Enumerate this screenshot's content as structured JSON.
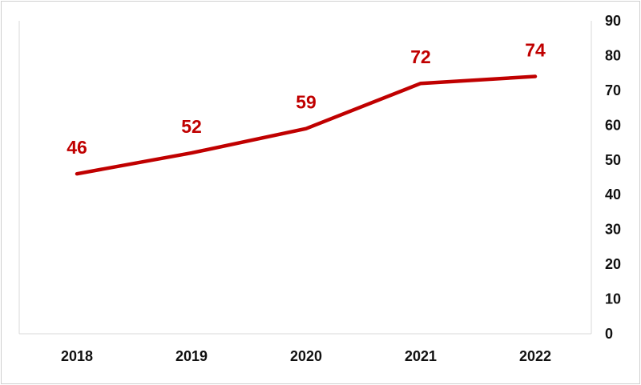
{
  "colors": {
    "series": "#c00000",
    "axis": "#d9d9d9",
    "text": "#111111"
  },
  "chart_data": {
    "type": "line",
    "x": [
      "2018",
      "2019",
      "2020",
      "2021",
      "2022"
    ],
    "series": [
      {
        "values": [
          46,
          52,
          59,
          72,
          74
        ]
      }
    ],
    "data_labels": [
      "46",
      "52",
      "59",
      "72",
      "74"
    ],
    "y_ticks": [
      "0",
      "10",
      "20",
      "30",
      "40",
      "50",
      "60",
      "70",
      "80",
      "90"
    ],
    "ylim": [
      0,
      90
    ],
    "y_axis_side": "right",
    "grid": false,
    "legend": "none",
    "title": "",
    "xlabel": "",
    "ylabel": ""
  }
}
